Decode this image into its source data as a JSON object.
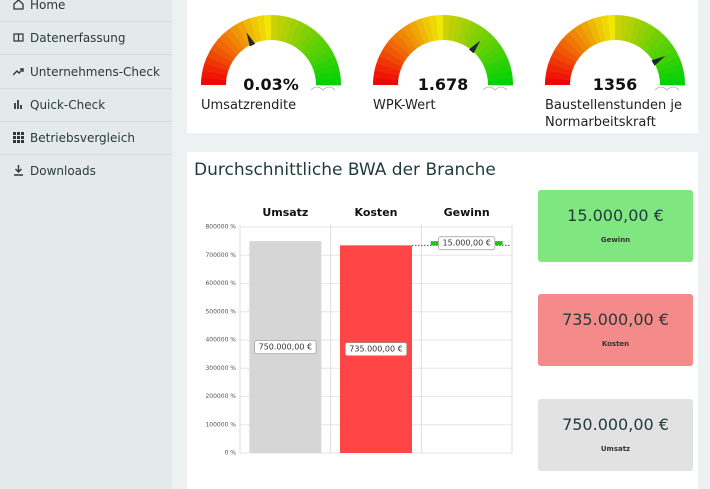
{
  "sidebar": {
    "items": [
      "Home",
      "Datenerfassung",
      "Unternehmens-Check",
      "Quick-Check",
      "Betriebsvergleich",
      "Downloads"
    ]
  },
  "gauges": [
    {
      "value_label": "0.03%",
      "label": "Umsatzrendite"
    },
    {
      "value_label": "1.678",
      "label": "WPK-Wert"
    },
    {
      "value_label": "1356",
      "label": "Baustellenstunden je Normarbeitskraft"
    }
  ],
  "chart_data": {
    "type": "waterfall",
    "title": "Durchschnittliche BWA der Branche",
    "categories": [
      "Umsatz",
      "Kosten",
      "Gewinn"
    ],
    "values": [
      750000,
      735000,
      15000
    ],
    "value_labels": [
      "750.000,00 €",
      "735.000,00 €",
      "15.000,00 €"
    ],
    "colors": [
      "#d6d6d6",
      "#ff4545",
      "#22c022"
    ],
    "ylim": [
      0,
      800000
    ],
    "yticks": [
      {
        "value": 0,
        "label": "0 %"
      },
      {
        "value": 100000,
        "label": "100000 %"
      },
      {
        "value": 200000,
        "label": "200000 %"
      },
      {
        "value": 300000,
        "label": "300000 %"
      },
      {
        "value": 400000,
        "label": "400000 %"
      },
      {
        "value": 500000,
        "label": "500000 %"
      },
      {
        "value": 600000,
        "label": "600000 %"
      },
      {
        "value": 700000,
        "label": "700000 %"
      },
      {
        "value": 800000,
        "label": "800000 %"
      }
    ],
    "grid": true
  },
  "cards": [
    {
      "value": "15.000,00 €",
      "label": "Gewinn",
      "color": "#80e680"
    },
    {
      "value": "735.000,00 €",
      "label": "Kosten",
      "color": "#f48a8a"
    },
    {
      "value": "750.000,00 €",
      "label": "Umsatz",
      "color": "#e2e2e2"
    }
  ]
}
